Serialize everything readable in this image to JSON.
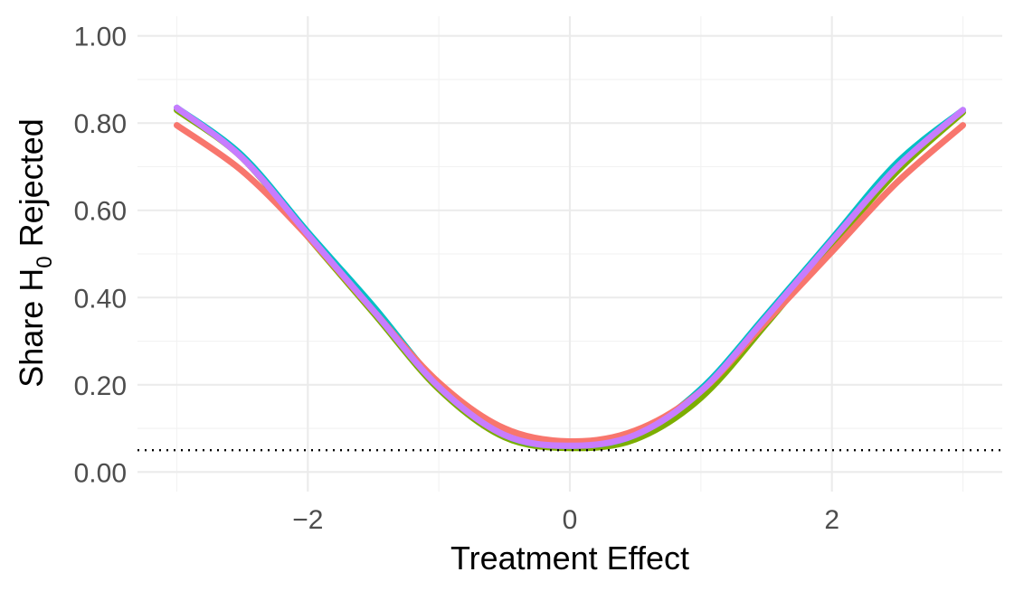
{
  "chart_data": {
    "type": "line",
    "title": "",
    "xlabel": "Treatment Effect",
    "ylabel": {
      "parts": [
        "Share  H",
        "0",
        "  Rejected"
      ]
    },
    "xlim": [
      -3.3,
      3.3
    ],
    "ylim": [
      -0.045,
      1.045
    ],
    "x_ticks": [
      -2,
      0,
      2
    ],
    "x_tick_labels": [
      "−2",
      "0",
      "2"
    ],
    "x_minor_ticks": [
      -3,
      -1,
      1,
      3
    ],
    "y_ticks": [
      0.0,
      0.2,
      0.4,
      0.6,
      0.8,
      1.0
    ],
    "y_tick_labels": [
      "0.00",
      "0.20",
      "0.40",
      "0.60",
      "0.80",
      "1.00"
    ],
    "y_minor_ticks": [
      0.1,
      0.3,
      0.5,
      0.7,
      0.9
    ],
    "grid": true,
    "legend": "none",
    "reference_line": {
      "y": 0.05,
      "style": "dotted",
      "color": "#000000"
    },
    "series": [
      {
        "color": "#7CAE00",
        "points": [
          [
            -3.0,
            0.83
          ],
          [
            -2.5,
            0.72
          ],
          [
            -2.0,
            0.54
          ],
          [
            -1.5,
            0.365
          ],
          [
            -1.0,
            0.19
          ],
          [
            -0.5,
            0.08
          ],
          [
            0.0,
            0.055
          ],
          [
            0.5,
            0.075
          ],
          [
            1.0,
            0.17
          ],
          [
            1.5,
            0.34
          ],
          [
            2.0,
            0.52
          ],
          [
            2.5,
            0.69
          ],
          [
            3.0,
            0.825
          ]
        ]
      },
      {
        "color": "#00BFC4",
        "points": [
          [
            -3.0,
            0.835
          ],
          [
            -2.5,
            0.725
          ],
          [
            -2.0,
            0.55
          ],
          [
            -1.5,
            0.38
          ],
          [
            -1.0,
            0.2
          ],
          [
            -0.5,
            0.085
          ],
          [
            0.0,
            0.06
          ],
          [
            0.5,
            0.085
          ],
          [
            1.0,
            0.19
          ],
          [
            1.5,
            0.36
          ],
          [
            2.0,
            0.535
          ],
          [
            2.5,
            0.71
          ],
          [
            3.0,
            0.83
          ]
        ]
      },
      {
        "color": "#F8766D",
        "points": [
          [
            -3.0,
            0.795
          ],
          [
            -2.5,
            0.69
          ],
          [
            -2.0,
            0.54
          ],
          [
            -1.5,
            0.37
          ],
          [
            -1.0,
            0.205
          ],
          [
            -0.5,
            0.1
          ],
          [
            0.0,
            0.07
          ],
          [
            0.5,
            0.095
          ],
          [
            1.0,
            0.185
          ],
          [
            1.5,
            0.345
          ],
          [
            2.0,
            0.505
          ],
          [
            2.5,
            0.665
          ],
          [
            3.0,
            0.795
          ]
        ]
      },
      {
        "color": "#C77CFF",
        "points": [
          [
            -3.0,
            0.835
          ],
          [
            -2.5,
            0.72
          ],
          [
            -2.0,
            0.545
          ],
          [
            -1.5,
            0.37
          ],
          [
            -1.0,
            0.195
          ],
          [
            -0.5,
            0.085
          ],
          [
            0.0,
            0.06
          ],
          [
            0.5,
            0.085
          ],
          [
            1.0,
            0.185
          ],
          [
            1.5,
            0.355
          ],
          [
            2.0,
            0.53
          ],
          [
            2.5,
            0.7
          ],
          [
            3.0,
            0.83
          ]
        ]
      }
    ]
  }
}
